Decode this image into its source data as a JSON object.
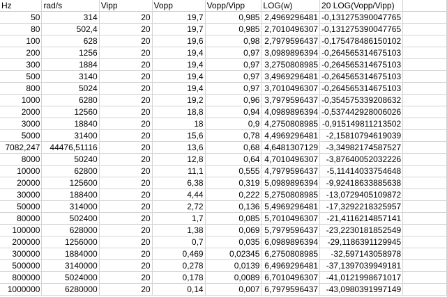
{
  "sheet": {
    "headers": [
      "Hz",
      "rad/s",
      "Vipp",
      "Vopp",
      "Vopp/Vipp",
      "LOG(w)",
      "20 LOG(Vopp/Vipp)"
    ],
    "rows": [
      [
        "50",
        "314",
        "20",
        "19,7",
        "0,985",
        "2,4969296481",
        "-0,131275390047765"
      ],
      [
        "80",
        "502,4",
        "20",
        "19,7",
        "0,985",
        "2,7010496307",
        "-0,131275390047765"
      ],
      [
        "100",
        "628",
        "20",
        "19,6",
        "0,98",
        "2,7979596437",
        "-0,175478486150102"
      ],
      [
        "200",
        "1256",
        "20",
        "19,4",
        "0,97",
        "3,0989896394",
        "-0,264565314675103"
      ],
      [
        "300",
        "1884",
        "20",
        "19,4",
        "0,97",
        "3,2750808985",
        "-0,264565314675103"
      ],
      [
        "500",
        "3140",
        "20",
        "19,4",
        "0,97",
        "3,4969296481",
        "-0,264565314675103"
      ],
      [
        "800",
        "5024",
        "20",
        "19,4",
        "0,97",
        "3,7010496307",
        "-0,264565314675103"
      ],
      [
        "1000",
        "6280",
        "20",
        "19,2",
        "0,96",
        "3,7979596437",
        "-0,354575339208632"
      ],
      [
        "2000",
        "12560",
        "20",
        "18,8",
        "0,94",
        "4,0989896394",
        "-0,537442928006026"
      ],
      [
        "3000",
        "18840",
        "20",
        "18",
        "0,9",
        "4,2750808985",
        "-0,915149811213502"
      ],
      [
        "5000",
        "31400",
        "20",
        "15,6",
        "0,78",
        "4,4969296481",
        "-2,15810794619039"
      ],
      [
        "7082,247",
        "44476,51116",
        "20",
        "13,6",
        "0,68",
        "4,6481307129",
        "-3,34982174587527"
      ],
      [
        "8000",
        "50240",
        "20",
        "12,8",
        "0,64",
        "4,7010496307",
        "-3,87640052032226"
      ],
      [
        "10000",
        "62800",
        "20",
        "11,1",
        "0,555",
        "4,7979596437",
        "-5,11414033754648"
      ],
      [
        "20000",
        "125600",
        "20",
        "6,38",
        "0,319",
        "5,0989896394",
        "-9,92418633885638"
      ],
      [
        "30000",
        "188400",
        "20",
        "4,44",
        "0,222",
        "5,2750808985",
        "-13,0729405109872"
      ],
      [
        "50000",
        "314000",
        "20",
        "2,72",
        "0,136",
        "5,4969296481",
        "-17,3292218325957"
      ],
      [
        "80000",
        "502400",
        "20",
        "1,7",
        "0,085",
        "5,7010496307",
        "-21,4116214857141"
      ],
      [
        "100000",
        "628000",
        "20",
        "1,38",
        "0,069",
        "5,7979596437",
        "-23,2230181852549"
      ],
      [
        "200000",
        "1256000",
        "20",
        "0,7",
        "0,035",
        "6,0989896394",
        "-29,1186391129945"
      ],
      [
        "300000",
        "1884000",
        "20",
        "0,469",
        "0,02345",
        "6,2750808985",
        "-32,597143058978"
      ],
      [
        "500000",
        "3140000",
        "20",
        "0,278",
        "0,0139",
        "6,4969296481",
        "-37,1397039949181"
      ],
      [
        "800000",
        "5024000",
        "20",
        "0,178",
        "0,0089",
        "6,7010496307",
        "-41,0121998671017"
      ],
      [
        "1000000",
        "6280000",
        "20",
        "0,14",
        "0,007",
        "6,7979596437",
        "-43,0980391997149"
      ]
    ]
  }
}
